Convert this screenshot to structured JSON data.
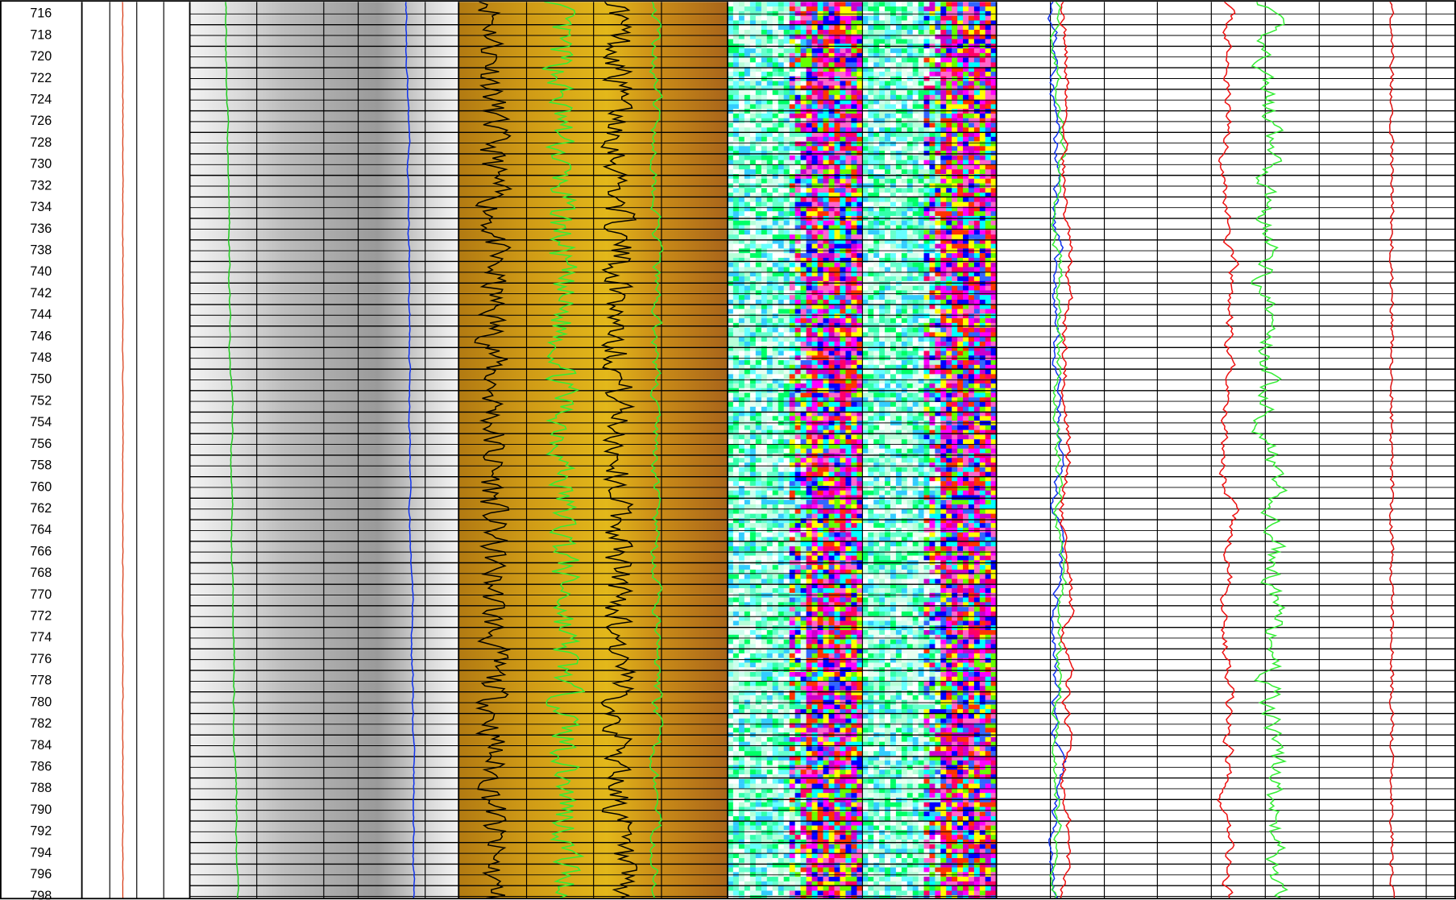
{
  "depth_labels": [
    716,
    718,
    720,
    722,
    724,
    726,
    728,
    730,
    732,
    734,
    736,
    738,
    740,
    742,
    744,
    746,
    748,
    750,
    752,
    754,
    756,
    758,
    760,
    762,
    764,
    766,
    768,
    770,
    772,
    774,
    776,
    778,
    780,
    782,
    784,
    786,
    788,
    790,
    792,
    794,
    796,
    798
  ]
}
